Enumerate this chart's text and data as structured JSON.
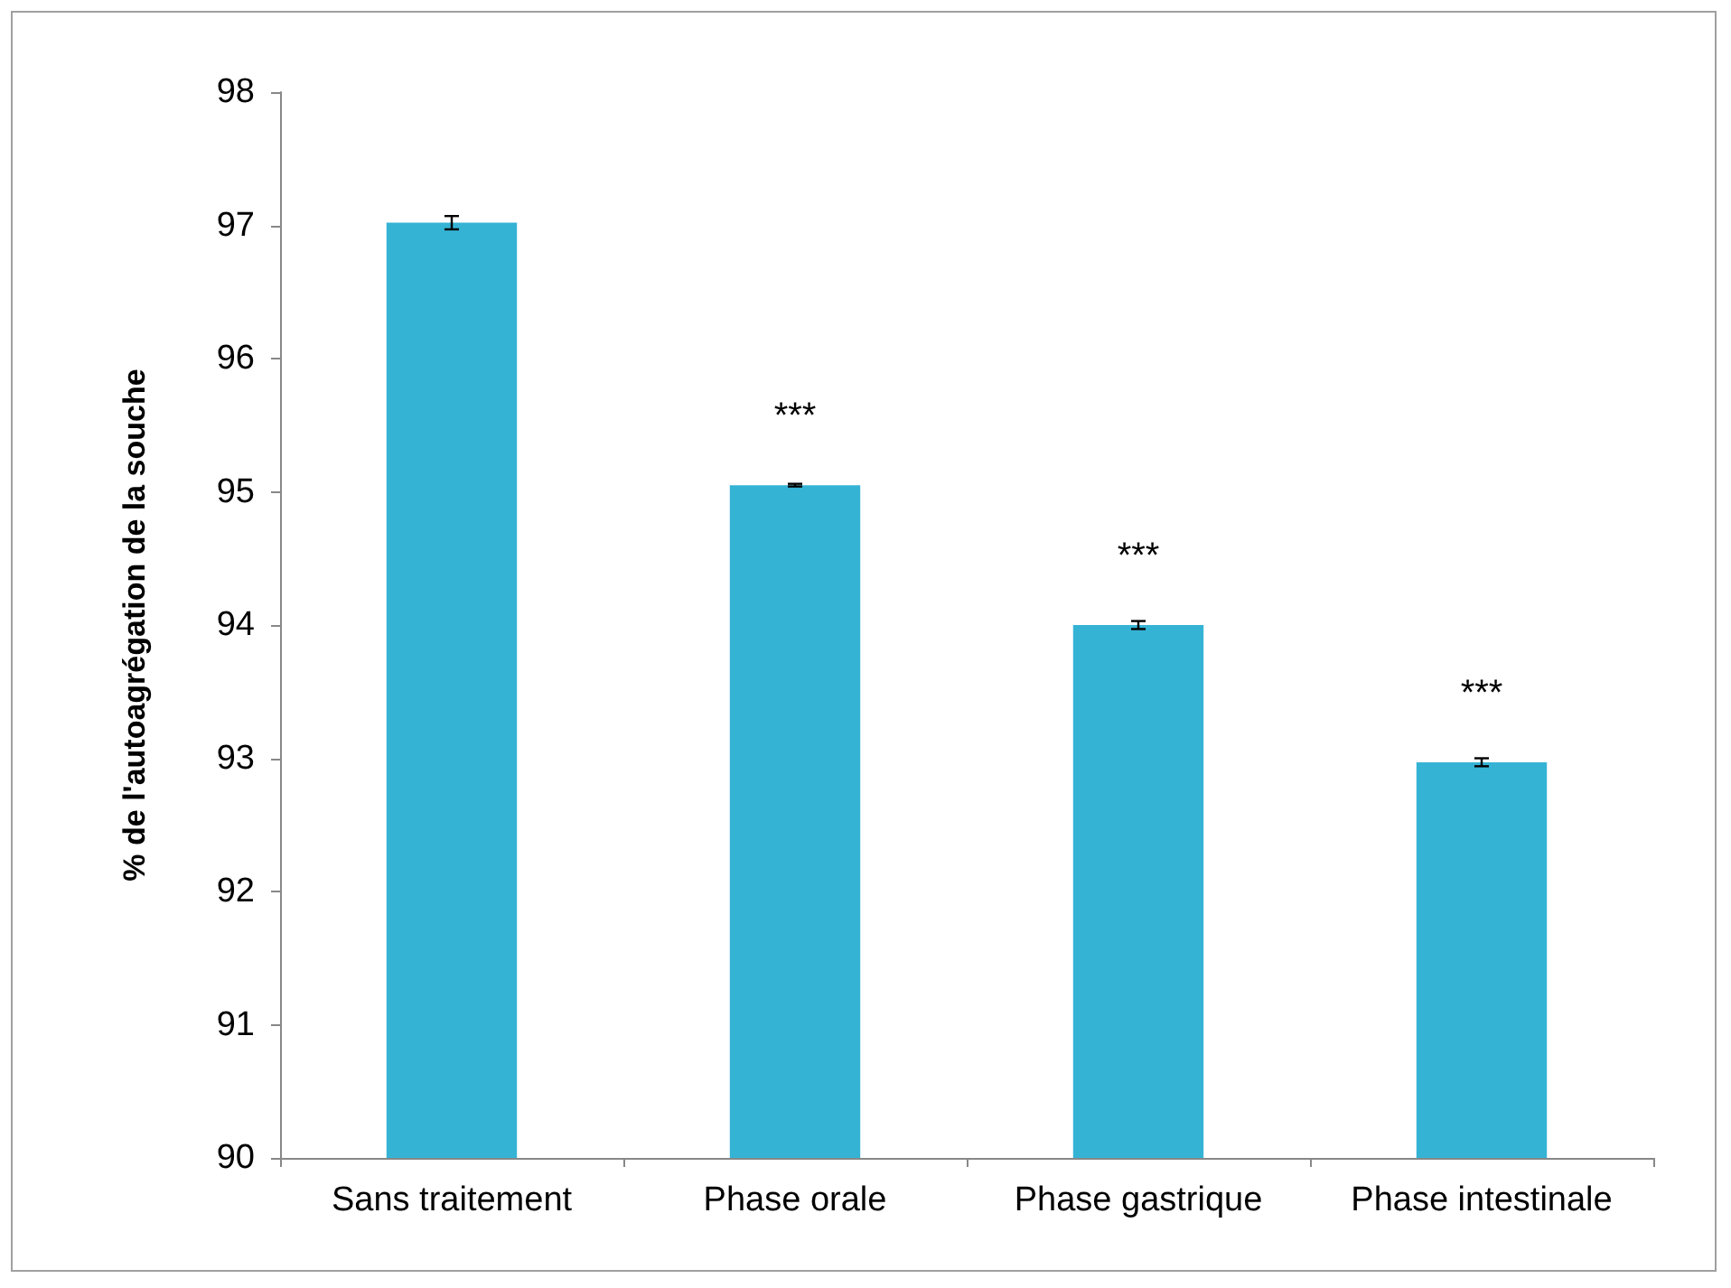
{
  "chart_data": {
    "type": "bar",
    "ylabel": "% de l'autoagrégation de la souche",
    "categories": [
      "Sans traitement",
      "Phase orale",
      "Phase gastrique",
      "Phase intestinale"
    ],
    "values": [
      97.02,
      95.05,
      94.0,
      92.97
    ],
    "color": "#35b3d5",
    "errors": [
      0.05,
      0.01,
      0.03,
      0.03
    ],
    "ylim": [
      90,
      98
    ],
    "yticks": [
      90,
      91,
      92,
      93,
      94,
      95,
      96,
      97,
      98
    ],
    "grid": false,
    "annotations": [
      {
        "text": "***",
        "x": "Phase orale",
        "y": 95.05
      },
      {
        "text": "***",
        "x": "Phase gastrique",
        "y": 94.0
      },
      {
        "text": "***",
        "x": "Phase intestinale",
        "y": 92.97
      }
    ]
  }
}
